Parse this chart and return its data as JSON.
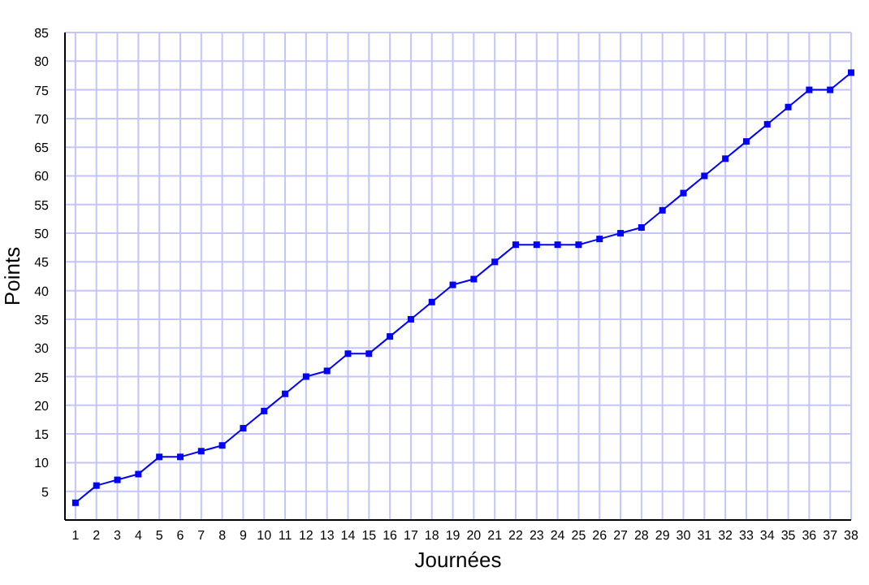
{
  "chart_data": {
    "type": "line",
    "xlabel": "Journées",
    "ylabel": "Points",
    "x": [
      1,
      2,
      3,
      4,
      5,
      6,
      7,
      8,
      9,
      10,
      11,
      12,
      13,
      14,
      15,
      16,
      17,
      18,
      19,
      20,
      21,
      22,
      23,
      24,
      25,
      26,
      27,
      28,
      29,
      30,
      31,
      32,
      33,
      34,
      35,
      36,
      37,
      38
    ],
    "series": [
      {
        "color": "#0000ff",
        "values": [
          3,
          6,
          7,
          8,
          11,
          11,
          12,
          13,
          16,
          19,
          22,
          25,
          26,
          29,
          29,
          32,
          35,
          38,
          41,
          42,
          45,
          48,
          48,
          48,
          48,
          49,
          50,
          51,
          54,
          57,
          60,
          63,
          66,
          69,
          72,
          75,
          75,
          78
        ]
      }
    ],
    "xlim": [
      0.5,
      38
    ],
    "xticks": [
      1,
      2,
      3,
      4,
      5,
      6,
      7,
      8,
      9,
      10,
      11,
      12,
      13,
      14,
      15,
      16,
      17,
      18,
      19,
      20,
      21,
      22,
      23,
      24,
      25,
      26,
      27,
      28,
      29,
      30,
      31,
      32,
      33,
      34,
      35,
      36,
      37,
      38
    ],
    "ylim": [
      0,
      85
    ],
    "yticks": [
      5,
      10,
      15,
      20,
      25,
      30,
      35,
      40,
      45,
      50,
      55,
      60,
      65,
      70,
      75,
      80,
      85
    ],
    "grid": true,
    "marker": "square",
    "line_style": "solid"
  }
}
